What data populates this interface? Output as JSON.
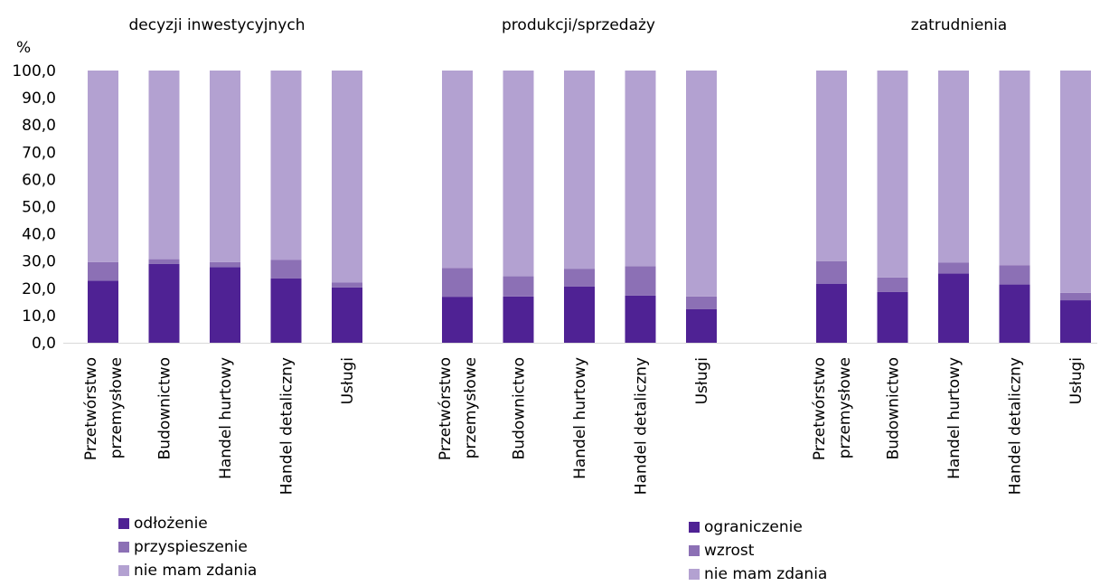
{
  "chart_data": {
    "type": "bar",
    "stacked": true,
    "ylabel": "%",
    "ylim": [
      0,
      100
    ],
    "y_ticks": [
      "0,0",
      "10,0",
      "20,0",
      "30,0",
      "40,0",
      "50,0",
      "60,0",
      "70,0",
      "80,0",
      "90,0",
      "100,0"
    ],
    "grid": false,
    "colors": {
      "dark": "#4f2294",
      "mid": "#8c70b5",
      "light": "#b3a1d1"
    },
    "groups": [
      {
        "title": "decyzji inwestycyjnych",
        "categories": [
          [
            "Przetwórstwo",
            "przemysłowe"
          ],
          [
            "Budownictwo"
          ],
          [
            "Handel hurtowy"
          ],
          [
            "Handel detaliczny"
          ],
          [
            "Usługi"
          ]
        ],
        "series": [
          {
            "name": "odłożenie",
            "color": "#4f2294",
            "values": [
              22.8,
              29.0,
              27.8,
              23.6,
              20.3
            ]
          },
          {
            "name": "przyspieszenie",
            "color": "#8c70b5",
            "values": [
              6.8,
              1.7,
              1.8,
              6.8,
              1.8
            ]
          },
          {
            "name": "nie mam zdania",
            "color": "#b3a1d1",
            "values": [
              70.4,
              69.3,
              70.4,
              69.6,
              77.9
            ]
          }
        ]
      },
      {
        "title": "produkcji/sprzedaży",
        "categories": [
          [
            "Przetwórstwo",
            "przemysłowe"
          ],
          [
            "Budownictwo"
          ],
          [
            "Handel hurtowy"
          ],
          [
            "Handel detaliczny"
          ],
          [
            "Usługi"
          ]
        ],
        "series": [
          {
            "name": "ograniczenie",
            "color": "#4f2294",
            "values": [
              16.9,
              17.0,
              20.7,
              17.3,
              12.3
            ]
          },
          {
            "name": "wzrost",
            "color": "#8c70b5",
            "values": [
              10.6,
              7.4,
              6.5,
              10.8,
              4.7
            ]
          },
          {
            "name": "nie mam zdania",
            "color": "#b3a1d1",
            "values": [
              72.5,
              75.6,
              72.8,
              71.9,
              83.0
            ]
          }
        ]
      },
      {
        "title": "zatrudnienia",
        "categories": [
          [
            "Przetwórstwo",
            "przemysłowe"
          ],
          [
            "Budownictwo"
          ],
          [
            "Handel hurtowy"
          ],
          [
            "Handel detaliczny"
          ],
          [
            "Usługi"
          ]
        ],
        "series": [
          {
            "name": "ograniczenie",
            "color": "#4f2294",
            "values": [
              21.7,
              18.7,
              25.4,
              21.4,
              15.6
            ]
          },
          {
            "name": "wzrost",
            "color": "#8c70b5",
            "values": [
              8.3,
              5.3,
              4.0,
              7.0,
              2.7
            ]
          },
          {
            "name": "nie mam zdania",
            "color": "#b3a1d1",
            "values": [
              70.0,
              76.0,
              70.6,
              71.6,
              81.7
            ]
          }
        ]
      }
    ],
    "legends": [
      {
        "placement": "bottom-left",
        "items": [
          {
            "label": "odłożenie",
            "color": "#4f2294"
          },
          {
            "label": "przyspieszenie",
            "color": "#8c70b5"
          },
          {
            "label": "nie mam zdania",
            "color": "#b3a1d1"
          }
        ]
      },
      {
        "placement": "bottom-center",
        "items": [
          {
            "label": "ograniczenie",
            "color": "#4f2294"
          },
          {
            "label": "wzrost",
            "color": "#8c70b5"
          },
          {
            "label": "nie mam zdania",
            "color": "#b3a1d1"
          }
        ]
      }
    ]
  }
}
